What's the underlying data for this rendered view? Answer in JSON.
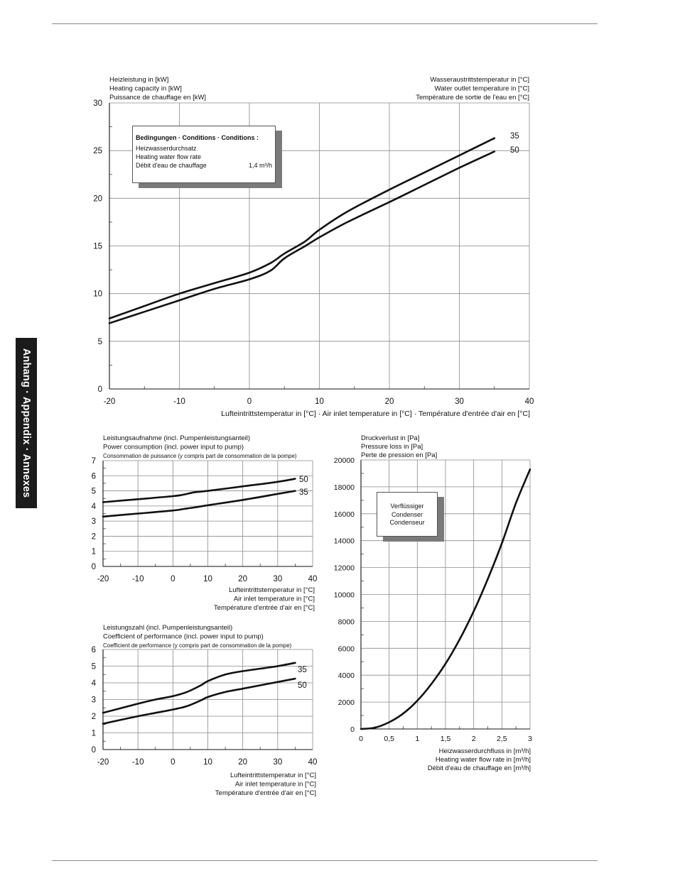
{
  "side_tab": "Anhang · Appendix · Annexes",
  "chart_data": [
    {
      "type": "line",
      "ylabel_lines": [
        "Heizleistung in [kW]",
        "Heating capacity in [kW]",
        "Puissance de chauffage en [kW]"
      ],
      "ylabel_right_lines": [
        "Wasseraustrittstemperatur in [°C]",
        "Water outlet temperature in [°C]",
        "Température de sortie de l'eau en [°C]"
      ],
      "xlabel_lines": [
        "Lufteintrittstemperatur in [°C] · Air inlet temperature in [°C] · Température d'entrée d'air en [°C]"
      ],
      "xlim": [
        -20,
        40
      ],
      "ylim": [
        0,
        30
      ],
      "xticks": [
        -20,
        -10,
        0,
        10,
        20,
        30,
        40
      ],
      "yticks": [
        0,
        5,
        10,
        15,
        20,
        25,
        30
      ],
      "grid": true,
      "conditions": {
        "title": "Bedingungen · Conditions · Conditions :",
        "lines": [
          "Heizwasserdurchsatz",
          "Heating water flow rate",
          "Débit d'eau de chauffage"
        ],
        "value": "1,4 m³/h"
      },
      "series": [
        {
          "name": "35",
          "x": [
            -20,
            -15,
            -10,
            -5,
            0,
            3,
            5,
            8,
            10,
            14,
            20,
            25,
            30,
            35
          ],
          "y": [
            7.4,
            8.7,
            10.0,
            11.1,
            12.2,
            13.2,
            14.2,
            15.5,
            16.7,
            18.6,
            20.9,
            22.7,
            24.5,
            26.3
          ]
        },
        {
          "name": "50",
          "x": [
            -20,
            -15,
            -10,
            -5,
            0,
            3,
            5,
            8,
            10,
            14,
            20,
            25,
            30,
            35
          ],
          "y": [
            6.9,
            8.1,
            9.3,
            10.5,
            11.5,
            12.4,
            13.7,
            15.0,
            15.9,
            17.5,
            19.6,
            21.4,
            23.2,
            24.9
          ]
        }
      ]
    },
    {
      "type": "line",
      "ylabel_lines": [
        "Leistungsaufnahme (incl. Pumpenleistungsanteil)",
        "Power consumption (incl. power input to pump)",
        "Consommation de puissance (y compris part de consommation de la pompe)"
      ],
      "xlabel_lines": [
        "Lufteintrittstemperatur in [°C]",
        "Air inlet temperature in [°C]",
        "Température d'entrée d'air en [°C]"
      ],
      "xlim": [
        -20,
        40
      ],
      "ylim": [
        0,
        7
      ],
      "xticks": [
        -20,
        -10,
        0,
        10,
        20,
        30,
        40
      ],
      "yticks": [
        0,
        1,
        2,
        3,
        4,
        5,
        6,
        7
      ],
      "grid": true,
      "series": [
        {
          "name": "50",
          "x": [
            -20,
            -10,
            0,
            3,
            6,
            10,
            20,
            30,
            35
          ],
          "y": [
            4.25,
            4.45,
            4.65,
            4.75,
            4.9,
            5.0,
            5.3,
            5.6,
            5.8
          ]
        },
        {
          "name": "35",
          "x": [
            -20,
            -10,
            0,
            3,
            6,
            10,
            20,
            30,
            35
          ],
          "y": [
            3.3,
            3.5,
            3.7,
            3.8,
            3.9,
            4.05,
            4.4,
            4.8,
            5.0
          ]
        }
      ]
    },
    {
      "type": "line",
      "ylabel_lines": [
        "Leistungszahl (incl. Pumpenleistungsanteil)",
        "Coefficient of performance (incl. power input to pump)",
        "Coefficient de performance (y compris part de consommation de la pompe)"
      ],
      "xlabel_lines": [
        "Lufteintrittstemperatur in [°C]",
        "Air inlet temperature in [°C]",
        "Température d'entrée d'air en [°C]"
      ],
      "xlim": [
        -20,
        40
      ],
      "ylim": [
        0,
        6
      ],
      "xticks": [
        -20,
        -10,
        0,
        10,
        20,
        30,
        40
      ],
      "yticks": [
        0,
        1,
        2,
        3,
        4,
        5,
        6
      ],
      "grid": true,
      "series": [
        {
          "name": "35",
          "x": [
            -20,
            -10,
            -5,
            0,
            4,
            8,
            10,
            15,
            20,
            25,
            30,
            35
          ],
          "y": [
            2.2,
            2.75,
            3.0,
            3.2,
            3.45,
            3.85,
            4.1,
            4.5,
            4.7,
            4.85,
            5.0,
            5.2
          ]
        },
        {
          "name": "50",
          "x": [
            -20,
            -10,
            -5,
            0,
            4,
            8,
            10,
            15,
            20,
            25,
            30,
            35
          ],
          "y": [
            1.55,
            2.0,
            2.2,
            2.4,
            2.6,
            2.95,
            3.15,
            3.45,
            3.65,
            3.85,
            4.05,
            4.25
          ]
        }
      ]
    },
    {
      "type": "line",
      "ylabel_lines": [
        "Druckverlust in [Pa]",
        "Pressure loss in [Pa]",
        "Perte de pression en [Pa]"
      ],
      "xlabel_lines": [
        "Heizwasserdurchfluss in [m³/h]",
        "Heating water flow rate in [m³/h]",
        "Débit d'eau de chauffage en [m³/h]"
      ],
      "xlim": [
        0,
        3
      ],
      "ylim": [
        0,
        20000
      ],
      "xticks": [
        0,
        0.5,
        1,
        1.5,
        2,
        2.5,
        3
      ],
      "xtick_labels": [
        "0",
        "0,5",
        "1",
        "1,5",
        "2",
        "2,5",
        "3"
      ],
      "yticks": [
        0,
        2000,
        4000,
        6000,
        8000,
        10000,
        12000,
        14000,
        16000,
        18000,
        20000
      ],
      "grid": true,
      "conditions": {
        "lines": [
          "Verflüssiger",
          "Condenser",
          "Condenseur"
        ]
      },
      "series": [
        {
          "name": "",
          "x": [
            0,
            0.25,
            0.5,
            0.75,
            1.0,
            1.25,
            1.5,
            1.75,
            2.0,
            2.25,
            2.5,
            2.75,
            3.0
          ],
          "y": [
            0,
            100,
            500,
            1150,
            2100,
            3350,
            4850,
            6650,
            8750,
            11150,
            13800,
            16800,
            19300
          ]
        }
      ]
    }
  ]
}
